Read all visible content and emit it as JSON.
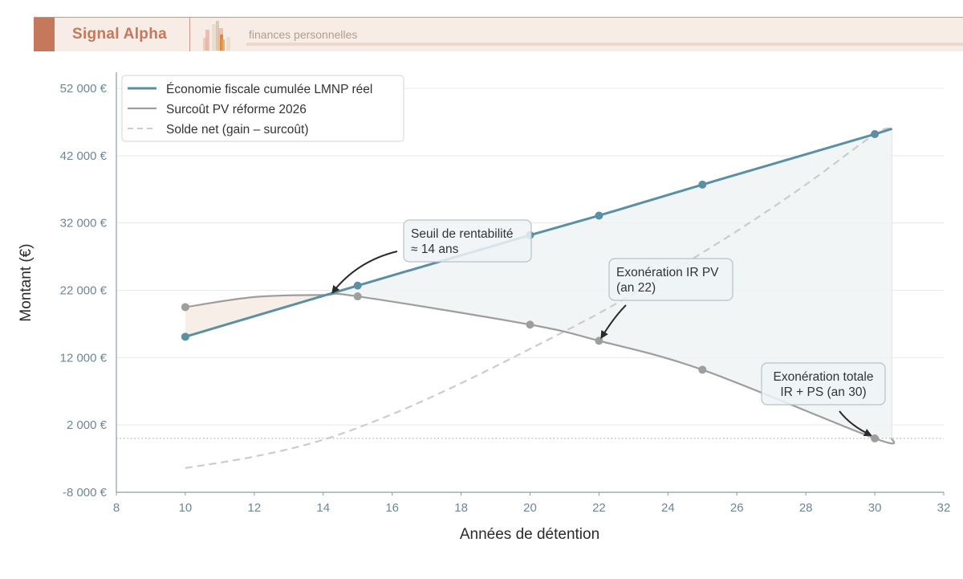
{
  "header": {
    "brand_name": "Signal Alpha",
    "tagline": "finances personnelles",
    "logo_icon": "bar-chart-logo-icon",
    "colors": {
      "accent": "#c5785b",
      "background": "#f7ece6"
    }
  },
  "chart_data": {
    "type": "line",
    "title": "",
    "xlabel": "Années de détention",
    "ylabel": "Montant (€)",
    "xlim": [
      8,
      32
    ],
    "ylim": [
      -8000,
      52000
    ],
    "xticks": [
      8,
      10,
      12,
      14,
      16,
      18,
      20,
      22,
      24,
      26,
      28,
      30,
      32
    ],
    "xtick_labels": [
      "8",
      "10",
      "12",
      "14",
      "16",
      "18",
      "20",
      "22",
      "24",
      "26",
      "28",
      "30",
      "32"
    ],
    "yticks": [
      -8000,
      2000,
      12000,
      22000,
      32000,
      42000,
      52000
    ],
    "ytick_labels": [
      "-8 000 €",
      "2 000 €",
      "12 000 €",
      "22 000 €",
      "32 000 €",
      "42 000 €",
      "52 000 €"
    ],
    "grid": "horizontal",
    "legend_position": "upper left",
    "x": [
      10,
      15,
      20,
      22,
      25,
      30
    ],
    "series": [
      {
        "name": "Économie fiscale cumulée LMNP réel",
        "style": "solid-markers",
        "color": "#5b8fa3",
        "values": [
          15100,
          22700,
          30200,
          33100,
          37700,
          45200
        ],
        "extends_to": [
          30.5,
          46000
        ]
      },
      {
        "name": "Surcoût PV réforme 2026",
        "style": "solid-markers",
        "color": "#9e9e9e",
        "values": [
          19500,
          21100,
          16900,
          14500,
          10200,
          0
        ],
        "extends_to": [
          30.5,
          0
        ]
      },
      {
        "name": "Solde net (gain – surcoût)",
        "style": "dashed",
        "color": "#cccccc",
        "values": [
          -4400,
          1600,
          13300,
          18600,
          27500,
          45200
        ],
        "curve_x": [
          10,
          12,
          14,
          16,
          18,
          20,
          22,
          24,
          26,
          28,
          30,
          30.5
        ],
        "curve_values": [
          -4400,
          -2700,
          -200,
          3600,
          8200,
          13300,
          18600,
          24500,
          30800,
          37700,
          45200,
          46000
        ]
      }
    ],
    "reference_line": {
      "y": 0,
      "style": "dotted"
    },
    "shaded_regions": [
      {
        "from": 10,
        "to": 14.2,
        "color": "#f7ece6",
        "meaning": "surcoût > économie"
      },
      {
        "from": 14.2,
        "to": 30.5,
        "color": "#eef3f5",
        "meaning": "économie > surcoût"
      }
    ],
    "annotations": [
      {
        "lines": [
          "Seuil de rentabilité",
          "≈ 14 ans"
        ],
        "target": [
          14.2,
          21200
        ]
      },
      {
        "lines": [
          "Exonération IR PV",
          "(an 22)"
        ],
        "target": [
          22,
          14500
        ]
      },
      {
        "lines": [
          "Exonération totale",
          "IR + PS (an 30)"
        ],
        "target": [
          30,
          0
        ]
      }
    ]
  }
}
